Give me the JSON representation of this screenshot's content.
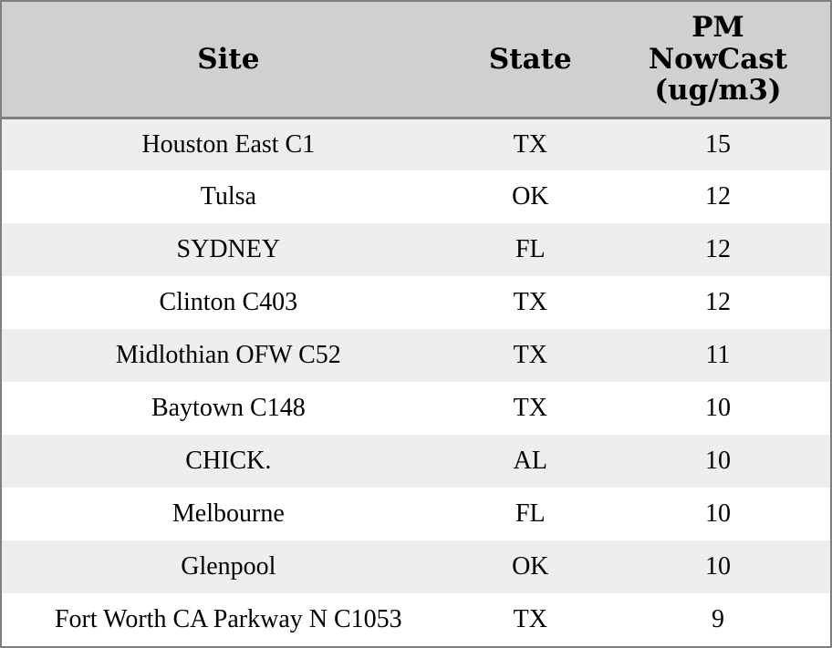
{
  "colors": {
    "header_bg": "#d0d0d0",
    "row_stripe_bg": "#eeeeee",
    "row_bg": "#ffffff",
    "border": "#7f7f7f",
    "text": "#000000"
  },
  "table": {
    "columns": [
      {
        "key": "site",
        "label": "Site"
      },
      {
        "key": "state",
        "label": "State"
      },
      {
        "key": "pm",
        "label": "PM NowCast (ug/m3)"
      }
    ],
    "rows": [
      {
        "site": "Houston East C1",
        "state": "TX",
        "pm": "15"
      },
      {
        "site": "Tulsa",
        "state": "OK",
        "pm": "12"
      },
      {
        "site": "SYDNEY",
        "state": "FL",
        "pm": "12"
      },
      {
        "site": "Clinton C403",
        "state": "TX",
        "pm": "12"
      },
      {
        "site": "Midlothian OFW C52",
        "state": "TX",
        "pm": "11"
      },
      {
        "site": "Baytown C148",
        "state": "TX",
        "pm": "10"
      },
      {
        "site": "CHICK.",
        "state": "AL",
        "pm": "10"
      },
      {
        "site": "Melbourne",
        "state": "FL",
        "pm": "10"
      },
      {
        "site": "Glenpool",
        "state": "OK",
        "pm": "10"
      },
      {
        "site": "Fort Worth CA Parkway N C1053",
        "state": "TX",
        "pm": "9"
      }
    ]
  },
  "chart_data": {
    "type": "table",
    "title": "",
    "columns": [
      "Site",
      "State",
      "PM NowCast (ug/m3)"
    ],
    "rows": [
      [
        "Houston East C1",
        "TX",
        15
      ],
      [
        "Tulsa",
        "OK",
        12
      ],
      [
        "SYDNEY",
        "FL",
        12
      ],
      [
        "Clinton C403",
        "TX",
        12
      ],
      [
        "Midlothian OFW C52",
        "TX",
        11
      ],
      [
        "Baytown C148",
        "TX",
        10
      ],
      [
        "CHICK.",
        "AL",
        10
      ],
      [
        "Melbourne",
        "FL",
        10
      ],
      [
        "Glenpool",
        "OK",
        10
      ],
      [
        "Fort Worth CA Parkway N C1053",
        "TX",
        9
      ]
    ]
  }
}
